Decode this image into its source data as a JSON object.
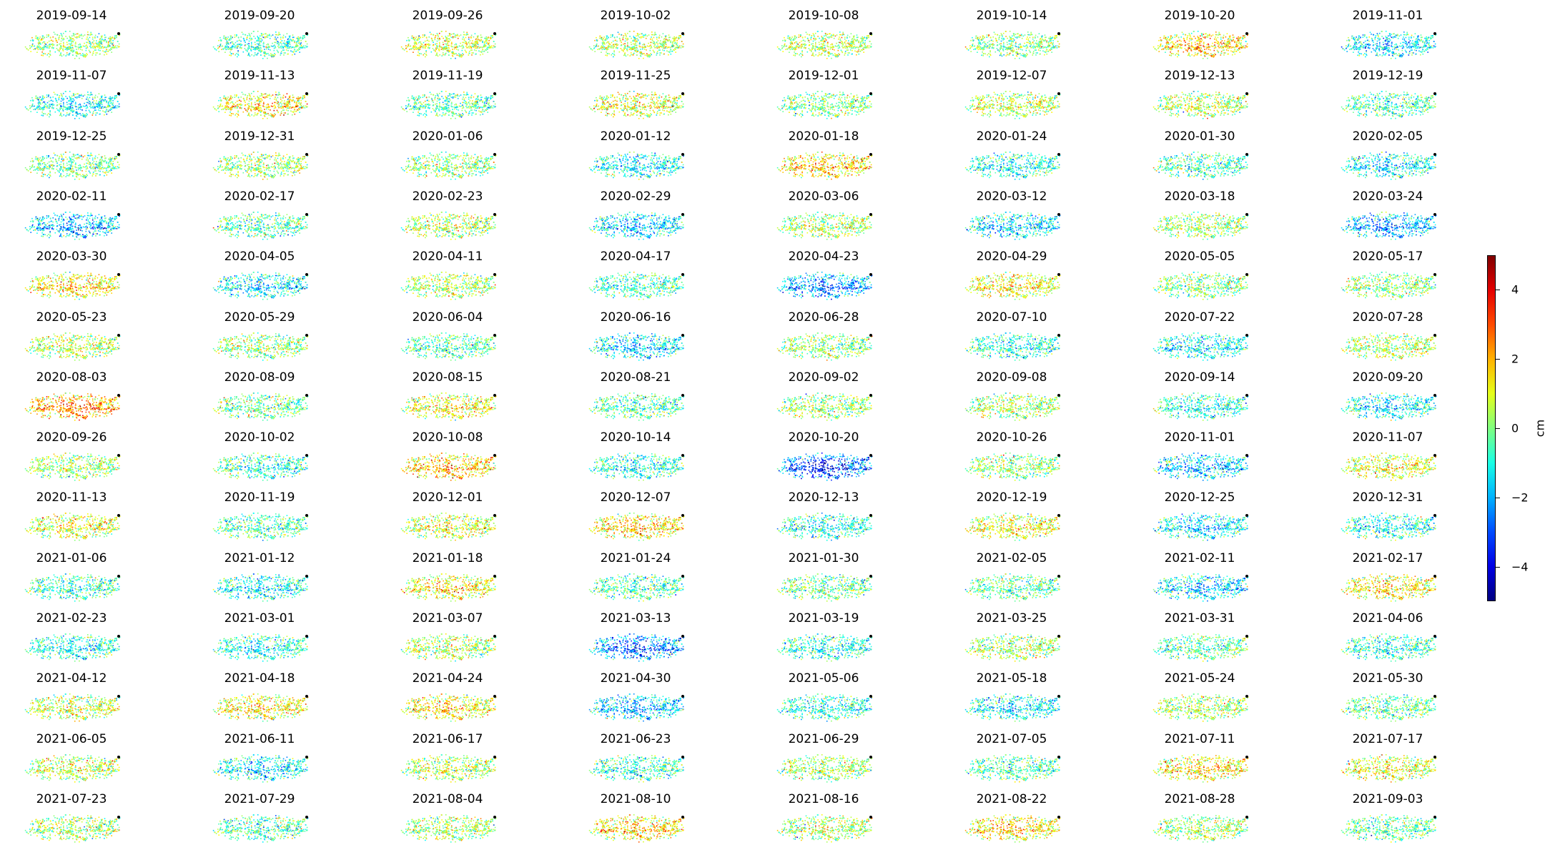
{
  "chart_data": {
    "type": "scatter",
    "layout": "small-multiples",
    "colormap": "jet",
    "colorbar": {
      "label": "cm",
      "range": [
        -5,
        5
      ],
      "ticks": [
        4,
        2,
        0,
        -2,
        -4
      ]
    },
    "panels": [
      {
        "date": "2019-09-14",
        "mean": 0.3
      },
      {
        "date": "2019-09-20",
        "mean": -0.6
      },
      {
        "date": "2019-09-26",
        "mean": 0.8
      },
      {
        "date": "2019-10-02",
        "mean": 0.6
      },
      {
        "date": "2019-10-08",
        "mean": 0.6
      },
      {
        "date": "2019-10-14",
        "mean": 0.0
      },
      {
        "date": "2019-10-20",
        "mean": 1.6
      },
      {
        "date": "2019-11-01",
        "mean": -1.5
      },
      {
        "date": "2019-11-07",
        "mean": -1.2
      },
      {
        "date": "2019-11-13",
        "mean": 1.3
      },
      {
        "date": "2019-11-19",
        "mean": -0.4
      },
      {
        "date": "2019-11-25",
        "mean": 0.9
      },
      {
        "date": "2019-12-01",
        "mean": 0.0
      },
      {
        "date": "2019-12-07",
        "mean": 0.7
      },
      {
        "date": "2019-12-13",
        "mean": 0.6
      },
      {
        "date": "2019-12-19",
        "mean": -0.6
      },
      {
        "date": "2019-12-25",
        "mean": -0.2
      },
      {
        "date": "2019-12-31",
        "mean": 0.3
      },
      {
        "date": "2020-01-06",
        "mean": 0.1
      },
      {
        "date": "2020-01-12",
        "mean": -1.3
      },
      {
        "date": "2020-01-18",
        "mean": 1.6
      },
      {
        "date": "2020-01-24",
        "mean": -1.0
      },
      {
        "date": "2020-01-30",
        "mean": -0.6
      },
      {
        "date": "2020-02-05",
        "mean": -1.4
      },
      {
        "date": "2020-02-11",
        "mean": -2.0
      },
      {
        "date": "2020-02-17",
        "mean": -0.5
      },
      {
        "date": "2020-02-23",
        "mean": 0.6
      },
      {
        "date": "2020-02-29",
        "mean": -1.6
      },
      {
        "date": "2020-03-06",
        "mean": 0.4
      },
      {
        "date": "2020-03-12",
        "mean": -1.6
      },
      {
        "date": "2020-03-18",
        "mean": 0.3
      },
      {
        "date": "2020-03-24",
        "mean": -2.2
      },
      {
        "date": "2020-03-30",
        "mean": 1.4
      },
      {
        "date": "2020-04-05",
        "mean": -1.5
      },
      {
        "date": "2020-04-11",
        "mean": 0.4
      },
      {
        "date": "2020-04-17",
        "mean": -0.7
      },
      {
        "date": "2020-04-23",
        "mean": -2.4
      },
      {
        "date": "2020-04-29",
        "mean": 1.2
      },
      {
        "date": "2020-05-05",
        "mean": 0.0
      },
      {
        "date": "2020-05-17",
        "mean": 0.2
      },
      {
        "date": "2020-05-23",
        "mean": 0.6
      },
      {
        "date": "2020-05-29",
        "mean": 0.2
      },
      {
        "date": "2020-06-04",
        "mean": -0.5
      },
      {
        "date": "2020-06-16",
        "mean": -1.5
      },
      {
        "date": "2020-06-28",
        "mean": 0.2
      },
      {
        "date": "2020-07-10",
        "mean": -1.0
      },
      {
        "date": "2020-07-22",
        "mean": -1.3
      },
      {
        "date": "2020-07-28",
        "mean": 0.5
      },
      {
        "date": "2020-08-03",
        "mean": 2.2
      },
      {
        "date": "2020-08-09",
        "mean": -0.2
      },
      {
        "date": "2020-08-15",
        "mean": 1.1
      },
      {
        "date": "2020-08-21",
        "mean": -0.5
      },
      {
        "date": "2020-09-02",
        "mean": 0.2
      },
      {
        "date": "2020-09-08",
        "mean": 0.4
      },
      {
        "date": "2020-09-14",
        "mean": -1.0
      },
      {
        "date": "2020-09-20",
        "mean": -1.3
      },
      {
        "date": "2020-09-26",
        "mean": 0.4
      },
      {
        "date": "2020-10-02",
        "mean": -0.8
      },
      {
        "date": "2020-10-08",
        "mean": 1.8
      },
      {
        "date": "2020-10-14",
        "mean": -1.0
      },
      {
        "date": "2020-10-20",
        "mean": -3.2
      },
      {
        "date": "2020-10-26",
        "mean": 0.1
      },
      {
        "date": "2020-11-01",
        "mean": -1.8
      },
      {
        "date": "2020-11-07",
        "mean": 1.0
      },
      {
        "date": "2020-11-13",
        "mean": 1.0
      },
      {
        "date": "2020-11-19",
        "mean": -0.5
      },
      {
        "date": "2020-12-01",
        "mean": 0.9
      },
      {
        "date": "2020-12-07",
        "mean": 1.5
      },
      {
        "date": "2020-12-13",
        "mean": -1.0
      },
      {
        "date": "2020-12-19",
        "mean": 1.1
      },
      {
        "date": "2020-12-25",
        "mean": -1.4
      },
      {
        "date": "2020-12-31",
        "mean": -1.0
      },
      {
        "date": "2021-01-06",
        "mean": -0.8
      },
      {
        "date": "2021-01-12",
        "mean": -1.2
      },
      {
        "date": "2021-01-18",
        "mean": 1.3
      },
      {
        "date": "2021-01-24",
        "mean": -0.5
      },
      {
        "date": "2021-01-30",
        "mean": -0.2
      },
      {
        "date": "2021-02-05",
        "mean": -0.3
      },
      {
        "date": "2021-02-11",
        "mean": -1.6
      },
      {
        "date": "2021-02-17",
        "mean": 1.4
      },
      {
        "date": "2021-02-23",
        "mean": -1.0
      },
      {
        "date": "2021-03-01",
        "mean": -1.0
      },
      {
        "date": "2021-03-07",
        "mean": 0.6
      },
      {
        "date": "2021-03-13",
        "mean": -2.6
      },
      {
        "date": "2021-03-19",
        "mean": -1.0
      },
      {
        "date": "2021-03-25",
        "mean": 0.4
      },
      {
        "date": "2021-03-31",
        "mean": -0.4
      },
      {
        "date": "2021-04-06",
        "mean": -0.8
      },
      {
        "date": "2021-04-12",
        "mean": 0.8
      },
      {
        "date": "2021-04-18",
        "mean": 1.4
      },
      {
        "date": "2021-04-24",
        "mean": 1.4
      },
      {
        "date": "2021-04-30",
        "mean": -1.8
      },
      {
        "date": "2021-05-06",
        "mean": -1.0
      },
      {
        "date": "2021-05-18",
        "mean": -1.4
      },
      {
        "date": "2021-05-24",
        "mean": 0.5
      },
      {
        "date": "2021-05-30",
        "mean": -0.2
      },
      {
        "date": "2021-06-05",
        "mean": 0.6
      },
      {
        "date": "2021-06-11",
        "mean": -1.4
      },
      {
        "date": "2021-06-17",
        "mean": 0.6
      },
      {
        "date": "2021-06-23",
        "mean": -0.8
      },
      {
        "date": "2021-06-29",
        "mean": 0.4
      },
      {
        "date": "2021-07-05",
        "mean": -0.5
      },
      {
        "date": "2021-07-11",
        "mean": 1.4
      },
      {
        "date": "2021-07-17",
        "mean": 1.0
      },
      {
        "date": "2021-07-23",
        "mean": 0.4
      },
      {
        "date": "2021-07-29",
        "mean": -0.5
      },
      {
        "date": "2021-08-04",
        "mean": 0.4
      },
      {
        "date": "2021-08-10",
        "mean": 1.6
      },
      {
        "date": "2021-08-16",
        "mean": 0.4
      },
      {
        "date": "2021-08-22",
        "mean": 1.5
      },
      {
        "date": "2021-08-28",
        "mean": 0.3
      },
      {
        "date": "2021-09-03",
        "mean": -0.4
      }
    ]
  }
}
